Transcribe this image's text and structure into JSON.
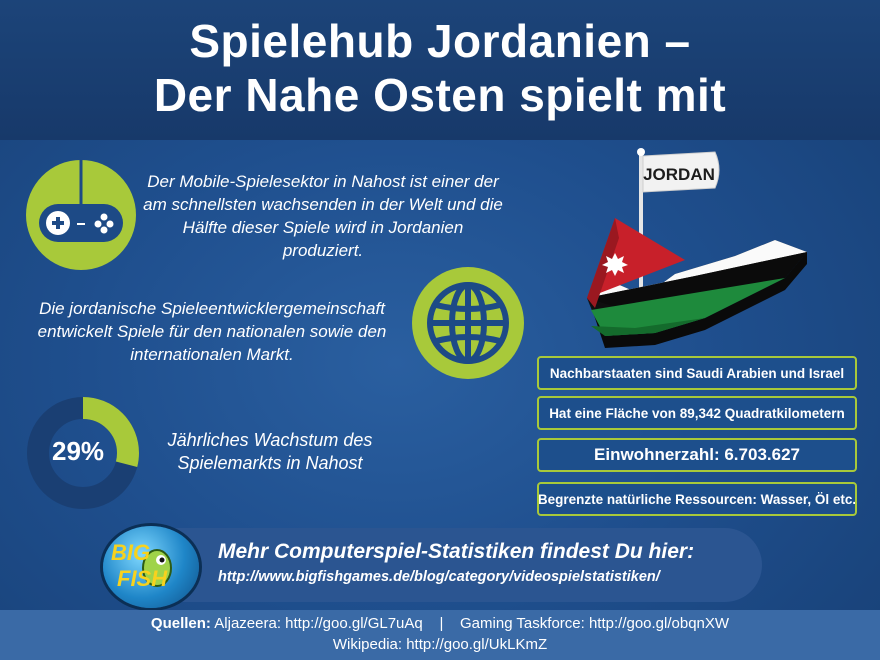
{
  "title_line1": "Spielehub Jordanien –",
  "title_line2": "Der Nahe Osten spielt mit",
  "block1_text": "Der Mobile-Spielesektor in Nahost ist einer der am schnellsten wachsenden in der Welt und die Hälfte dieser Spiele wird in Jordanien produziert.",
  "block2_text": "Die jordanische Spieleentwicklergemeinschaft entwickelt Spiele für den nationalen sowie den internationalen Markt.",
  "growth": {
    "value_label": "29%",
    "percent": 29,
    "text": "Jährliches Wachstum des Spielemarkts in Nahost"
  },
  "flag_label": "JORDAN",
  "facts": [
    "Nachbarstaaten sind Saudi Arabien und Israel",
    "Hat eine Fläche von 89,342 Quadratkilometern",
    "Einwohnerzahl: 6.703.627",
    "Begrenzte natürliche Ressourcen: Wasser, Öl etc."
  ],
  "logo": {
    "line1": "BIG",
    "line2": "FISH"
  },
  "promo": {
    "heading": "Mehr Computerspiel-Statistiken findest Du hier:",
    "url": "http://www.bigfishgames.de/blog/category/videospielstatistiken/"
  },
  "footer": {
    "sources_label": "Quellen:",
    "source1": "Aljazeera: http://goo.gl/GL7uAq",
    "separator": "|",
    "source2": "Gaming Taskforce: http://goo.gl/obqnXW",
    "source3": "Wikipedia: http://goo.gl/UkLKmZ"
  },
  "colors": {
    "accent_green": "#a8c93a",
    "background_blue": "#1f4f8e",
    "header_blue": "#17396a",
    "flag_red": "#c8202a",
    "flag_green": "#1e8a3c"
  }
}
